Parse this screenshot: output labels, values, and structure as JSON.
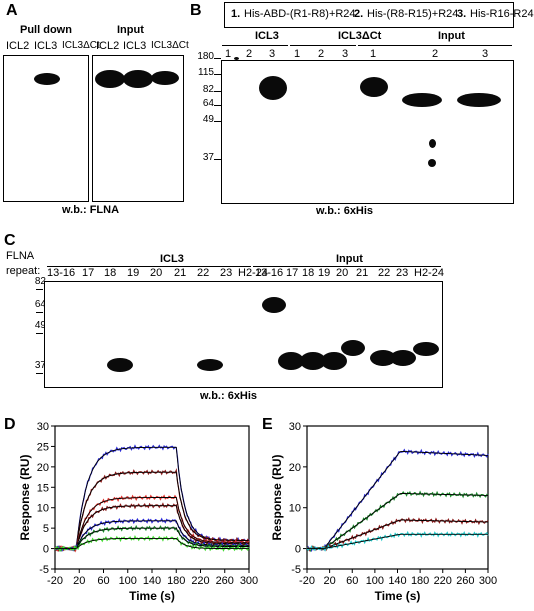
{
  "panel_a": {
    "letter": "A",
    "group_pulldown": "Pull down",
    "group_input": "Input",
    "lanes_pulldown": [
      "ICL2",
      "ICL3",
      "ICL3ΔCt"
    ],
    "lanes_input": [
      "ICL2",
      "ICL3",
      "ICL3ΔCt"
    ],
    "wb": "w.b.: FLNA"
  },
  "panel_b": {
    "letter": "B",
    "legend": [
      {
        "num": "1.",
        "text": "His-ABD-(R1-R8)+R24"
      },
      {
        "num": "2.",
        "text": "His-(R8-R15)+R24"
      },
      {
        "num": "3.",
        "text": "His-R16-R24"
      }
    ],
    "groups": [
      "ICL3",
      "ICL3ΔCt",
      "Input"
    ],
    "lane_numbers": [
      "1",
      "2",
      "3",
      "1",
      "2",
      "3",
      "1",
      "2",
      "3"
    ],
    "mw": [
      "180",
      "115",
      "82",
      "64",
      "49",
      "37"
    ],
    "wb": "w.b.: 6xHis"
  },
  "panel_c": {
    "letter": "C",
    "row_title": "FLNA",
    "row_label": "repeat:",
    "groups": [
      "ICL3",
      "Input"
    ],
    "lanes_icl3": [
      "13-16",
      "17",
      "18",
      "19",
      "20",
      "21",
      "22",
      "23",
      "H2-24"
    ],
    "lanes_input": [
      "13-16",
      "17",
      "18",
      "19",
      "20",
      "21",
      "22",
      "23",
      "H2-24"
    ],
    "mw": [
      "82",
      "64",
      "49",
      "37"
    ],
    "wb": "w.b.: 6xHis"
  },
  "panel_d": {
    "letter": "D"
  },
  "panel_e": {
    "letter": "E"
  },
  "colors": {
    "blue": "#2a2ad8",
    "dark_red": "#8b1a1a",
    "red": "#e0302a",
    "green": "#1a8a2a",
    "bright_green": "#44dd33",
    "cyan": "#22cccc",
    "navy": "#1a1a80",
    "black": "#000000"
  },
  "chart_data": [
    {
      "type": "line",
      "panel": "D",
      "xlabel": "Time (s)",
      "ylabel": "Response (RU)",
      "xlim": [
        -20,
        300
      ],
      "ylim": [
        -5,
        30
      ],
      "xticks": [
        -20,
        20,
        60,
        100,
        140,
        180,
        220,
        260,
        300
      ],
      "yticks": [
        -5,
        0,
        5,
        10,
        15,
        20,
        25,
        30
      ],
      "injection": {
        "start": 15,
        "end": 180
      },
      "series": [
        {
          "color": "#2a2ad8",
          "plateau": 24.8,
          "end_dissoc": 2.0
        },
        {
          "color": "#8b1a1a",
          "plateau": 18.7,
          "end_dissoc": 2.0
        },
        {
          "color": "#e0302a",
          "plateau": 12.5,
          "end_dissoc": 1.5
        },
        {
          "color": "#8b1a1a",
          "plateau": 10.5,
          "end_dissoc": 1.2
        },
        {
          "color": "#2a2ad8",
          "plateau": 6.8,
          "end_dissoc": 0.8
        },
        {
          "color": "#1a8a2a",
          "plateau": 5.0,
          "end_dissoc": 0.5
        },
        {
          "color": "#44dd33",
          "plateau": 2.5,
          "end_dissoc": 0.0
        }
      ]
    },
    {
      "type": "line",
      "panel": "E",
      "xlabel": "Time (s)",
      "ylabel": "Response (RU)",
      "xlim": [
        -20,
        300
      ],
      "ylim": [
        -5,
        30
      ],
      "xticks": [
        -20,
        20,
        60,
        100,
        140,
        180,
        220,
        260,
        300
      ],
      "yticks": [
        -5,
        0,
        10,
        20,
        30
      ],
      "injection": {
        "start": 10,
        "end": 145
      },
      "series": [
        {
          "color": "#2a2ad8",
          "plateau": 23.8,
          "end": 22.8
        },
        {
          "color": "#1a8a2a",
          "plateau": 13.5,
          "end": 13.0
        },
        {
          "color": "#8b1a1a",
          "plateau": 7.0,
          "end": 6.5
        },
        {
          "color": "#22cccc",
          "plateau": 3.5,
          "end": 3.5
        }
      ]
    }
  ]
}
